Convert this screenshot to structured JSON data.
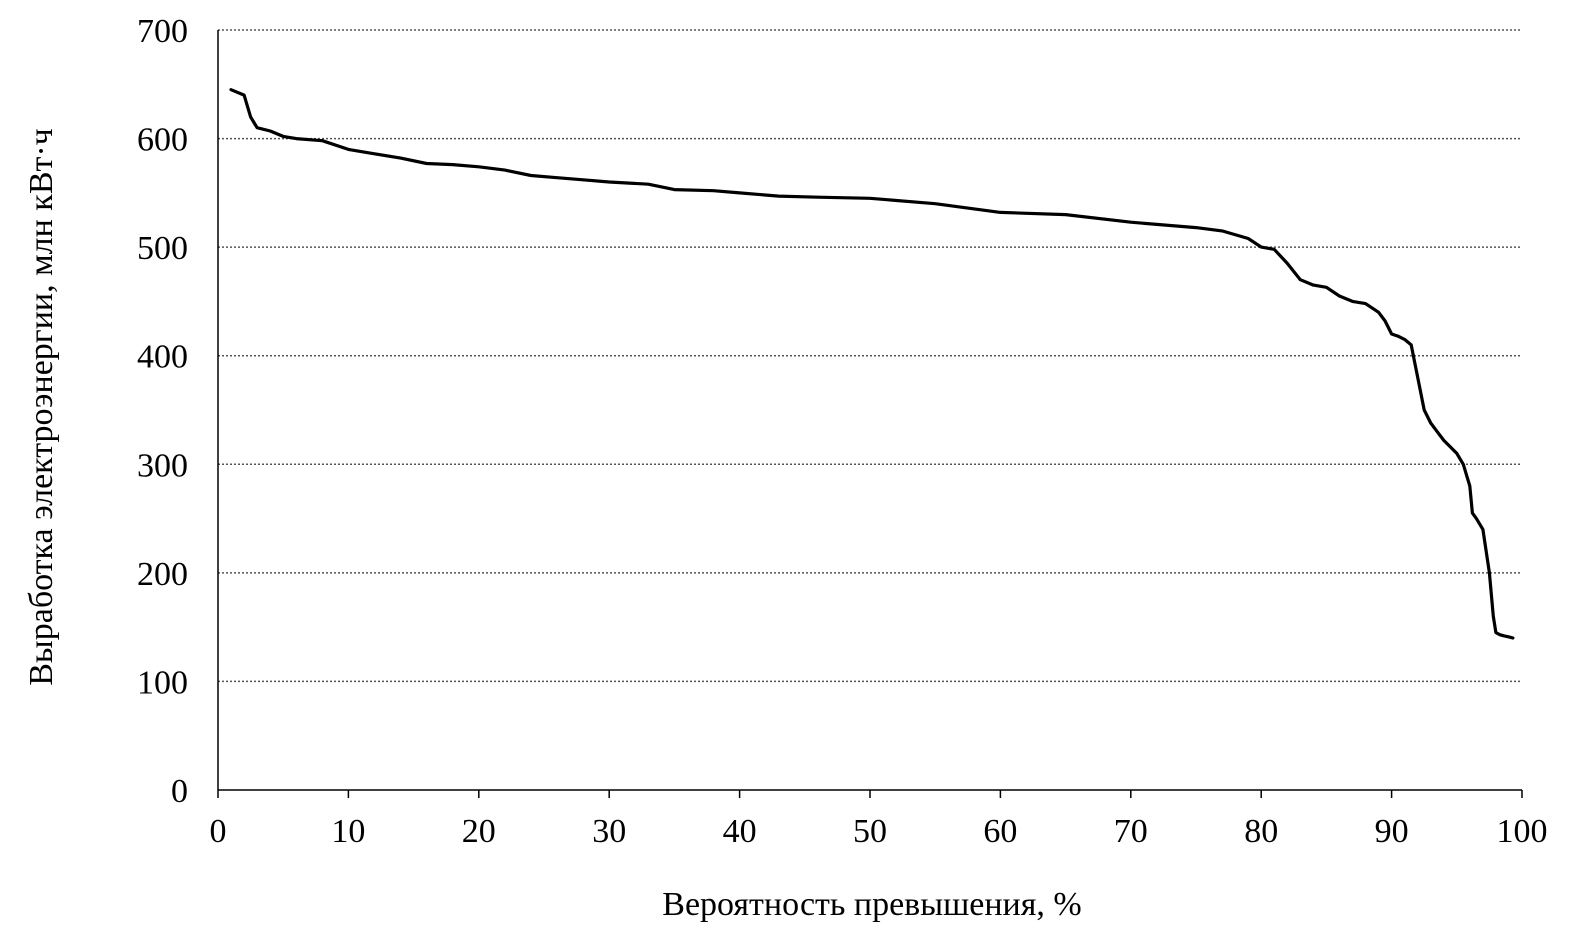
{
  "chart_data": {
    "type": "line",
    "title": "",
    "xlabel": "Вероятность превышения, %",
    "ylabel": "Выработка электроэнергии, млн кВт·ч",
    "xlim": [
      0,
      100
    ],
    "ylim": [
      0,
      700
    ],
    "x_ticks": [
      0,
      10,
      20,
      30,
      40,
      50,
      60,
      70,
      80,
      90,
      100
    ],
    "y_ticks": [
      0,
      100,
      200,
      300,
      400,
      500,
      600,
      700
    ],
    "grid": "horizontal",
    "series": [
      {
        "x": [
          1,
          2,
          2.5,
          3,
          4,
          5,
          6,
          8,
          10,
          12,
          14,
          16,
          18,
          20,
          22,
          24,
          26,
          28,
          30,
          33,
          35,
          38,
          40,
          43,
          46,
          50,
          55,
          60,
          65,
          70,
          75,
          77,
          79,
          80,
          81,
          82,
          83,
          84,
          85,
          86,
          87,
          88,
          89,
          89.5,
          90,
          90.5,
          91,
          91.5,
          92,
          92.5,
          93,
          93.5,
          94,
          95,
          95.5,
          96,
          96.2,
          96.5,
          97,
          97.5,
          97.8,
          98,
          98.3,
          98.6,
          99,
          99.3
        ],
        "y": [
          645,
          640,
          620,
          610,
          607,
          602,
          600,
          598,
          590,
          586,
          582,
          577,
          576,
          574,
          571,
          566,
          564,
          562,
          560,
          558,
          553,
          552,
          550,
          547,
          546,
          545,
          540,
          532,
          530,
          523,
          518,
          515,
          508,
          500,
          498,
          485,
          470,
          465,
          463,
          455,
          450,
          448,
          440,
          432,
          420,
          418,
          415,
          410,
          380,
          350,
          338,
          330,
          322,
          310,
          300,
          280,
          255,
          250,
          240,
          200,
          160,
          145,
          143,
          142,
          141,
          140
        ]
      }
    ]
  }
}
